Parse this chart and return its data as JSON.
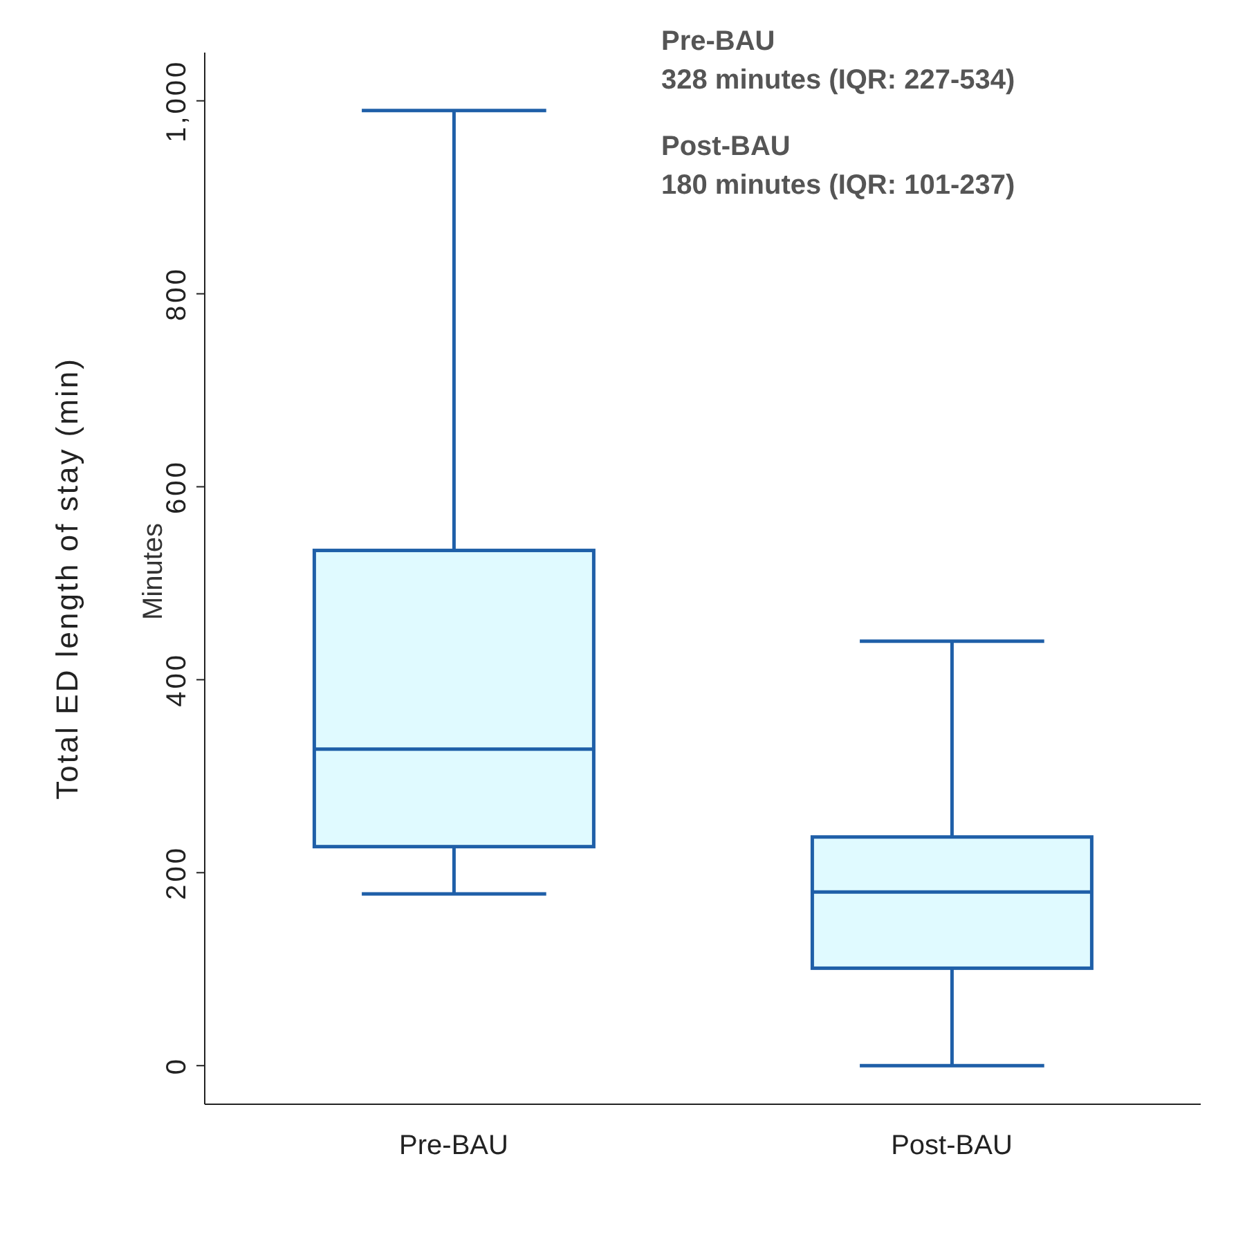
{
  "chart_data": {
    "type": "box",
    "categories": [
      "Pre-BAU",
      "Post-BAU"
    ],
    "boxes": [
      {
        "low": 178,
        "q1": 227,
        "median": 328,
        "q3": 534,
        "high": 990
      },
      {
        "low": 0,
        "q1": 101,
        "median": 180,
        "q3": 237,
        "high": 440
      }
    ],
    "color": "#1f5fa8",
    "ylabel": "Total ED length of stay (min)",
    "ylim": [
      -40,
      1050
    ],
    "yticks": [
      0,
      200,
      400,
      600,
      800,
      {
        "value": 1000,
        "label": "1,000"
      }
    ],
    "annotations": [
      "Minutes",
      "Pre-BAU",
      "328 minutes (IQR: 227-534)",
      "Post-BAU",
      "180 minutes (IQR: 101-237)"
    ]
  }
}
